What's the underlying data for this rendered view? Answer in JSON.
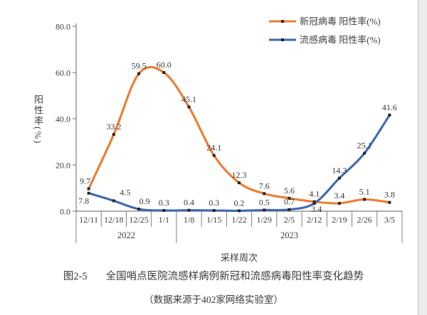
{
  "chart_data": {
    "type": "line",
    "smooth": true,
    "grid": false,
    "categories": [
      "12/11",
      "12/18",
      "12/25",
      "1/1",
      "1/8",
      "1/15",
      "1/22",
      "1/29",
      "2/5",
      "2/12",
      "2/19",
      "2/26",
      "3/5"
    ],
    "year_groups": [
      {
        "label": "2022",
        "span": 4
      },
      {
        "label": "2023",
        "span": 9
      }
    ],
    "series": [
      {
        "name": "新冠病毒 阳性率(%)",
        "color": "#ED7D31",
        "values": [
          9.7,
          33.2,
          59.5,
          60.0,
          45.1,
          24.1,
          12.3,
          7.6,
          5.6,
          4.1,
          3.4,
          5.1,
          3.8
        ]
      },
      {
        "name": "流感病毒 阳性率(%)",
        "color": "#3E68B2",
        "values": [
          7.8,
          4.5,
          0.9,
          0.3,
          0.4,
          0.3,
          0.2,
          0.5,
          0.7,
          3.4,
          14.3,
          25.1,
          41.6
        ]
      }
    ],
    "xlabel": "采样周次",
    "ylabel": "阳性率(%)",
    "ylim": [
      0,
      80
    ],
    "yticks": [
      0,
      20,
      40,
      60,
      80
    ],
    "ytick_labels": [
      "0.0",
      "20.0",
      "40.0",
      "60.0",
      "80.0"
    ],
    "marker_color": "#262626",
    "axis_color": "#808080",
    "label_color": "#3f3f3f",
    "legend_position": "top-right"
  },
  "caption": {
    "figure_no": "图2-5",
    "title": "全国哨点医院流感样病例新冠和流感病毒阳性率变化趋势",
    "source": "（数据来源于402家网络实验室）"
  }
}
